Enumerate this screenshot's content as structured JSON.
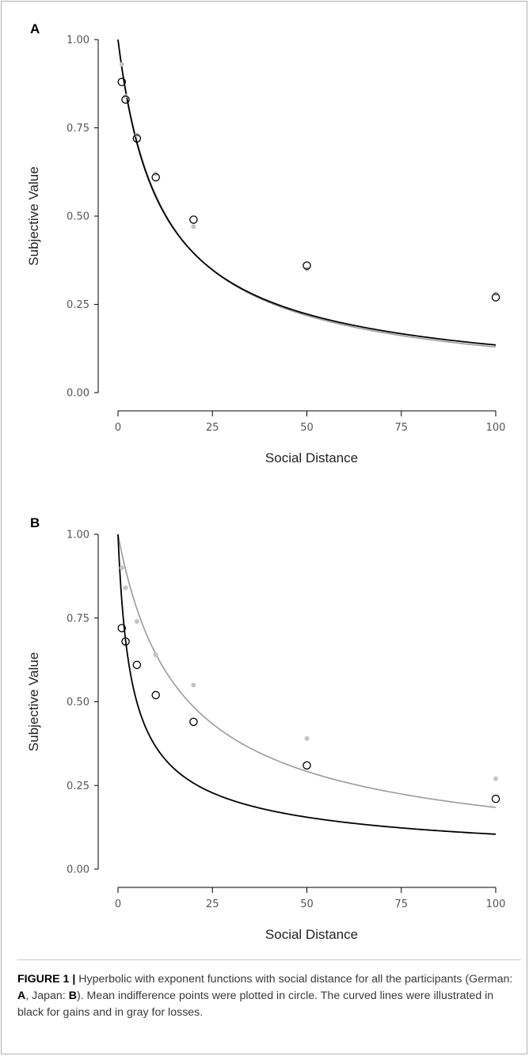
{
  "chart_data": [
    {
      "type": "scatter",
      "panel_label": "A",
      "xlabel": "Social Distance",
      "ylabel": "Subjective Value",
      "xlim": [
        0,
        100
      ],
      "ylim": [
        0,
        1
      ],
      "xticks": [
        "0",
        "25",
        "50",
        "75",
        "100"
      ],
      "yticks": [
        "0.00",
        "0.25",
        "0.50",
        "0.75",
        "1.00"
      ],
      "grid": false,
      "series": [
        {
          "color": "#000000",
          "marker": "open-circle",
          "x": [
            1,
            2,
            5,
            10,
            20,
            50,
            100
          ],
          "y": [
            0.88,
            0.83,
            0.72,
            0.61,
            0.49,
            0.36,
            0.27
          ],
          "fit": {
            "k": 0.105,
            "s": 0.82
          }
        },
        {
          "color": "#999999",
          "marker": "filled-dot",
          "x": [
            1,
            2,
            5,
            10,
            20,
            50,
            100
          ],
          "y": [
            0.93,
            0.84,
            0.73,
            0.62,
            0.47,
            0.35,
            0.28
          ],
          "fit": {
            "k": 0.095,
            "s": 0.87
          }
        }
      ]
    },
    {
      "type": "scatter",
      "panel_label": "B",
      "xlabel": "Social Distance",
      "ylabel": "Subjective Value",
      "xlim": [
        0,
        100
      ],
      "ylim": [
        0,
        1
      ],
      "xticks": [
        "0",
        "25",
        "50",
        "75",
        "100"
      ],
      "yticks": [
        "0.00",
        "0.25",
        "0.50",
        "0.75",
        "1.00"
      ],
      "grid": false,
      "series": [
        {
          "color": "#000000",
          "marker": "open-circle",
          "x": [
            1,
            2,
            5,
            10,
            20,
            50,
            100
          ],
          "y": [
            0.72,
            0.68,
            0.61,
            0.52,
            0.44,
            0.31,
            0.21
          ],
          "fit": {
            "k": 0.45,
            "s": 0.59
          }
        },
        {
          "color": "#999999",
          "marker": "filled-dot",
          "x": [
            1,
            2,
            5,
            10,
            20,
            50,
            100
          ],
          "y": [
            0.9,
            0.84,
            0.74,
            0.64,
            0.55,
            0.39,
            0.27
          ],
          "fit": {
            "k": 0.075,
            "s": 0.79
          }
        }
      ]
    }
  ],
  "caption": {
    "label": "FIGURE 1 |",
    "text_1": " Hyperbolic with exponent functions with social distance for all the participants (German: ",
    "german_label": "A",
    "text_2": ", Japan: ",
    "japan_label": "B",
    "text_3": "). Mean indifference points were plotted in circle. The curved lines were illustrated in black for gains and in gray for losses."
  }
}
